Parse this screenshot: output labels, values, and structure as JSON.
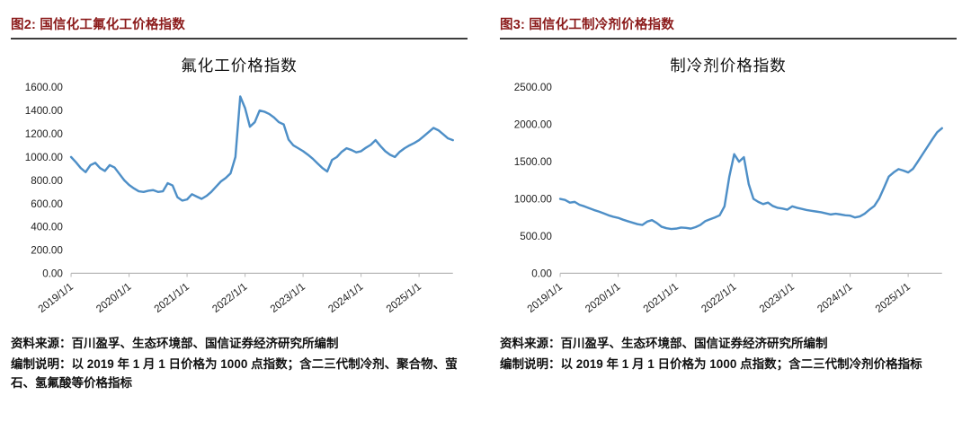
{
  "colors": {
    "caption_text": "#8B1A1A",
    "header_rule": "#3d3d3d",
    "line_series": "#4E8FC7",
    "axis_line": "#b7b7b7",
    "tick_text": "#222222"
  },
  "panels": [
    {
      "caption": "图2: 国信化工氟化工价格指数",
      "source": "资料来源：百川盈孚、生态环境部、国信证券经济研究所编制",
      "note": "编制说明：以 2019 年 1 月 1 日价格为 1000 点指数；含二三代制冷剂、聚合物、萤石、氢氟酸等价格指标"
    },
    {
      "caption": "图3: 国信化工制冷剂价格指数",
      "source": "资料来源：百川盈孚、生态环境部、国信证券经济研究所编制",
      "note": "编制说明：以 2019 年 1 月 1 日价格为 1000 点指数；含二三代制冷剂价格指标"
    }
  ],
  "chart_data": [
    {
      "type": "line",
      "title": "氟化工价格指数",
      "xlabel": "",
      "ylabel": "",
      "ylim": [
        0,
        1600
      ],
      "y_ticks": [
        0,
        200,
        400,
        600,
        800,
        1000,
        1200,
        1400,
        1600
      ],
      "grid": false,
      "legend": "none",
      "x_span_months": 79,
      "x_ticks": [
        {
          "label": "2019/1/1",
          "month": 0
        },
        {
          "label": "2020/1/1",
          "month": 12
        },
        {
          "label": "2021/1/1",
          "month": 24
        },
        {
          "label": "2022/1/1",
          "month": 36
        },
        {
          "label": "2023/1/1",
          "month": 48
        },
        {
          "label": "2024/1/1",
          "month": 60
        },
        {
          "label": "2025/1/1",
          "month": 72
        }
      ],
      "series": [
        {
          "name": "氟化工价格指数",
          "color": "#4E8FC7",
          "start": "2019/1",
          "interval": "monthly",
          "values": [
            1000,
            955,
            905,
            870,
            930,
            950,
            905,
            880,
            930,
            910,
            855,
            800,
            760,
            730,
            705,
            700,
            710,
            715,
            700,
            705,
            775,
            755,
            655,
            625,
            635,
            680,
            660,
            640,
            665,
            700,
            745,
            790,
            820,
            860,
            1000,
            1520,
            1420,
            1260,
            1300,
            1400,
            1390,
            1370,
            1340,
            1300,
            1280,
            1150,
            1100,
            1075,
            1050,
            1020,
            985,
            945,
            905,
            875,
            975,
            1000,
            1045,
            1075,
            1060,
            1040,
            1050,
            1080,
            1105,
            1145,
            1095,
            1050,
            1020,
            1000,
            1045,
            1075,
            1100,
            1120,
            1145,
            1180,
            1215,
            1250,
            1230,
            1195,
            1160,
            1145
          ]
        }
      ]
    },
    {
      "type": "line",
      "title": "制冷剂价格指数",
      "xlabel": "",
      "ylabel": "",
      "ylim": [
        0,
        2500
      ],
      "y_ticks": [
        0,
        500,
        1000,
        1500,
        2000,
        2500
      ],
      "grid": false,
      "legend": "none",
      "x_span_months": 79,
      "x_ticks": [
        {
          "label": "2019/1/1",
          "month": 0
        },
        {
          "label": "2020/1/1",
          "month": 12
        },
        {
          "label": "2021/1/1",
          "month": 24
        },
        {
          "label": "2022/1/1",
          "month": 36
        },
        {
          "label": "2023/1/1",
          "month": 48
        },
        {
          "label": "2024/1/1",
          "month": 60
        },
        {
          "label": "2025/1/1",
          "month": 72
        }
      ],
      "series": [
        {
          "name": "制冷剂价格指数",
          "color": "#4E8FC7",
          "start": "2019/1",
          "interval": "monthly",
          "values": [
            1000,
            985,
            950,
            960,
            920,
            900,
            875,
            850,
            830,
            805,
            780,
            760,
            745,
            720,
            700,
            680,
            660,
            650,
            695,
            715,
            675,
            625,
            605,
            595,
            600,
            615,
            610,
            600,
            620,
            650,
            700,
            725,
            750,
            780,
            900,
            1300,
            1600,
            1500,
            1560,
            1200,
            1000,
            960,
            930,
            950,
            905,
            880,
            870,
            855,
            900,
            880,
            865,
            850,
            840,
            830,
            820,
            805,
            790,
            800,
            790,
            780,
            775,
            750,
            765,
            800,
            855,
            905,
            1005,
            1150,
            1300,
            1355,
            1400,
            1380,
            1355,
            1405,
            1500,
            1600,
            1700,
            1800,
            1895,
            1950
          ]
        }
      ]
    }
  ]
}
